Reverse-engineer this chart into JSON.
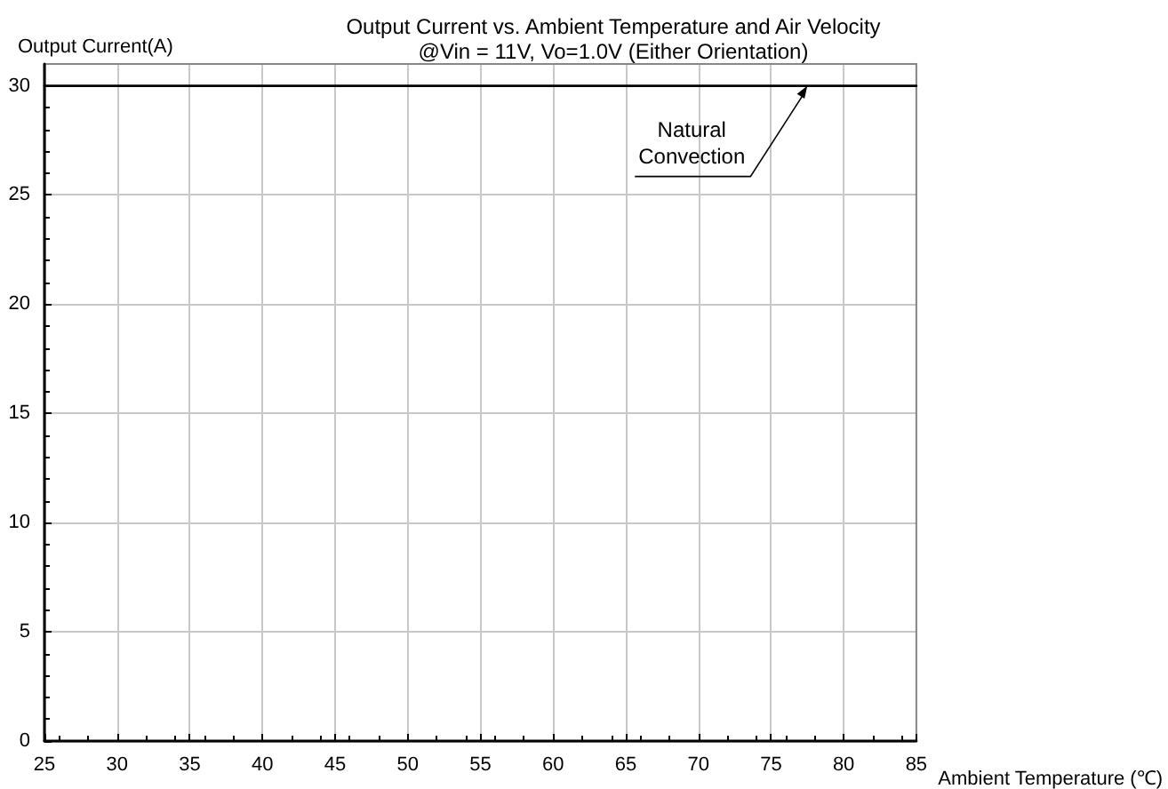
{
  "chart_data": {
    "type": "line",
    "title": "Output Current vs. Ambient Temperature and Air Velocity",
    "subtitle": "@Vin = 11V, Vo=1.0V (Either Orientation)",
    "xlabel": "Ambient Temperature (℃)",
    "ylabel": "Output Current(A)",
    "x": [
      25,
      85
    ],
    "series": [
      {
        "color": "#000000",
        "values": [
          30,
          30
        ]
      }
    ],
    "xlim": [
      25,
      85
    ],
    "xticks": [
      25,
      30,
      35,
      40,
      45,
      50,
      55,
      60,
      65,
      70,
      75,
      80,
      85
    ],
    "ylim": [
      0,
      31
    ],
    "yticks": [
      0,
      5,
      10,
      15,
      20,
      25,
      30
    ],
    "grid": true,
    "marker": "none",
    "line_style": "solid",
    "annotations": [
      {
        "text": "Natural\nConvection",
        "x": 77.5,
        "y": 30
      }
    ]
  }
}
